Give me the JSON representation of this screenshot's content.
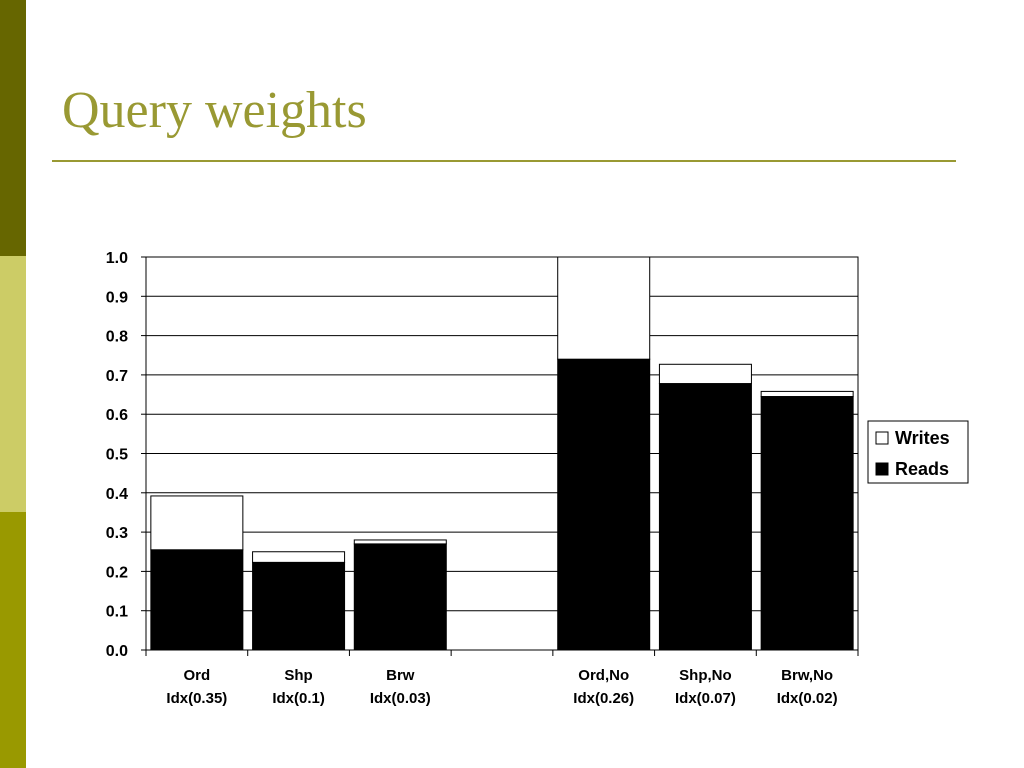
{
  "slide": {
    "title": "Query weights",
    "accent_color": "#999933",
    "sidebar_colors": [
      "#666600",
      "#cccc66",
      "#999900"
    ]
  },
  "chart_data": {
    "type": "bar",
    "stacked": true,
    "title": "",
    "xlabel": "",
    "ylabel": "",
    "ylim": [
      0,
      1.0
    ],
    "yticks": [
      "0.0",
      "0.1",
      "0.2",
      "0.3",
      "0.4",
      "0.5",
      "0.6",
      "0.7",
      "0.8",
      "0.9",
      "1.0"
    ],
    "grid": true,
    "legend_position": "right",
    "categories": [
      [
        "Ord",
        "Idx(0.35)"
      ],
      [
        "Shp",
        "Idx(0.1)"
      ],
      [
        "Brw",
        "Idx(0.03)"
      ],
      [
        "",
        ""
      ],
      [
        "Ord,No",
        "Idx(0.26)"
      ],
      [
        "Shp,No",
        "Idx(0.07)"
      ],
      [
        "Brw,No",
        "Idx(0.02)"
      ]
    ],
    "series": [
      {
        "name": "Reads",
        "color": "#000000",
        "values": [
          0.255,
          0.223,
          0.27,
          null,
          0.74,
          0.678,
          0.645
        ]
      },
      {
        "name": "Writes",
        "color": "#ffffff",
        "values": [
          0.137,
          0.027,
          0.01,
          null,
          0.26,
          0.049,
          0.013
        ]
      }
    ],
    "legend": [
      "Writes",
      "Reads"
    ]
  }
}
